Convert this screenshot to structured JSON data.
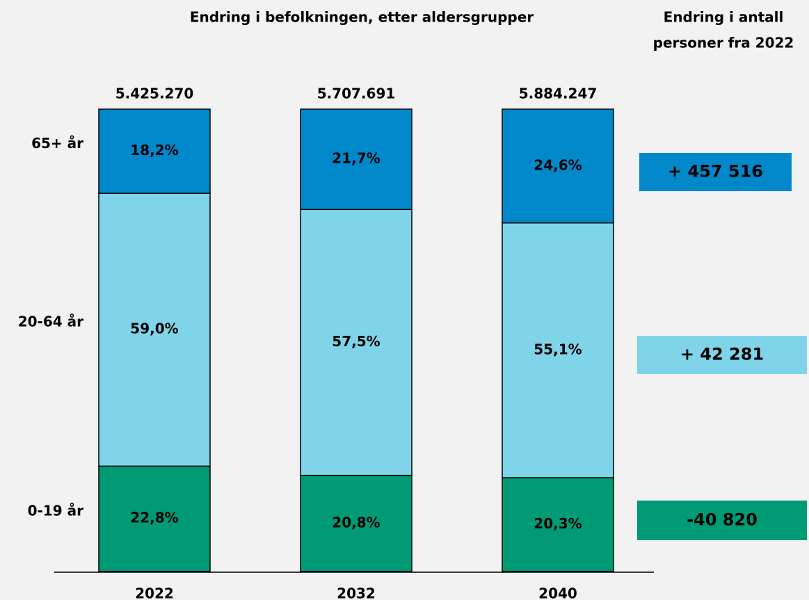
{
  "chart_data": {
    "type": "stacked_bar",
    "title": "Endring i befolkningen, etter aldersgrupper",
    "side_title": [
      "Endring i antall",
      "personer fra 2022"
    ],
    "categories": [
      "2022",
      "2032",
      "2040"
    ],
    "totals": [
      {
        "value": 5425270,
        "label": "5.425.270"
      },
      {
        "value": 5707691,
        "label": "5.707.691"
      },
      {
        "value": 5884247,
        "label": "5.884.247"
      }
    ],
    "ylim": [
      0,
      100
    ],
    "series": [
      {
        "name": "0-19 år",
        "color": "#009a74",
        "values": [
          22.8,
          20.8,
          20.3
        ],
        "value_labels": [
          "22,8%",
          "20,8%",
          "20,3%"
        ],
        "change": -40820,
        "change_label": "-40 820"
      },
      {
        "name": "20-64 år",
        "color": "#7fd4e9",
        "values": [
          59.0,
          57.5,
          55.1
        ],
        "value_labels": [
          "59,0%",
          "57,5%",
          "55,1%"
        ],
        "change": 42281,
        "change_label": "+ 42 281"
      },
      {
        "name": "65+ år",
        "color": "#0088cb",
        "values": [
          18.2,
          21.7,
          24.6
        ],
        "value_labels": [
          "18,2%",
          "21,7%",
          "24,6%"
        ],
        "change": 457516,
        "change_label": "+ 457 516"
      }
    ]
  }
}
